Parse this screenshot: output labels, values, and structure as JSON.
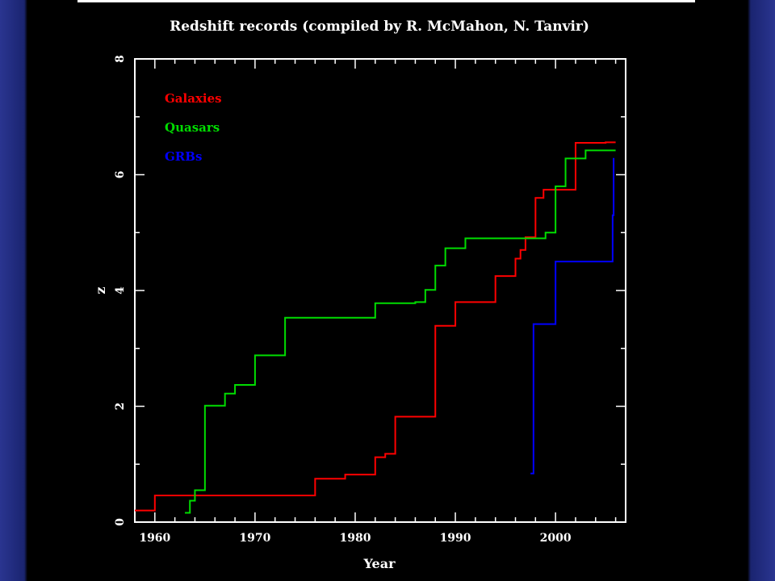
{
  "chart_data": {
    "type": "line",
    "title": "Redshift records (compiled by R. McMahon, N. Tanvir)",
    "xlabel": "Year",
    "ylabel": "z",
    "xlim": [
      1958,
      2007
    ],
    "ylim": [
      0,
      8
    ],
    "xticks": [
      1960,
      1970,
      1980,
      1990,
      2000
    ],
    "yticks": [
      0,
      2,
      4,
      6,
      8
    ],
    "legend_position": "top-left",
    "grid": false,
    "series": [
      {
        "name": "Galaxies",
        "color": "#ff0000",
        "step": true,
        "points": [
          [
            1958,
            0.2
          ],
          [
            1960,
            0.46
          ],
          [
            1976,
            0.75
          ],
          [
            1979,
            0.82
          ],
          [
            1982,
            1.12
          ],
          [
            1983,
            1.18
          ],
          [
            1984,
            1.82
          ],
          [
            1988,
            3.39
          ],
          [
            1990,
            3.8
          ],
          [
            1994,
            4.25
          ],
          [
            1996,
            4.55
          ],
          [
            1996.5,
            4.7
          ],
          [
            1997,
            4.92
          ],
          [
            1998,
            5.6
          ],
          [
            1998.8,
            5.74
          ],
          [
            2000,
            5.74
          ],
          [
            2002,
            6.55
          ],
          [
            2005,
            6.56
          ],
          [
            2006,
            6.56
          ]
        ]
      },
      {
        "name": "Quasars",
        "color": "#00dd00",
        "step": true,
        "points": [
          [
            1963,
            0.16
          ],
          [
            1963.5,
            0.37
          ],
          [
            1964,
            0.55
          ],
          [
            1965,
            2.01
          ],
          [
            1967,
            2.22
          ],
          [
            1968,
            2.37
          ],
          [
            1970,
            2.88
          ],
          [
            1973,
            3.53
          ],
          [
            1982,
            3.78
          ],
          [
            1986,
            3.8
          ],
          [
            1987,
            4.01
          ],
          [
            1988,
            4.43
          ],
          [
            1989,
            4.73
          ],
          [
            1991,
            4.9
          ],
          [
            1999,
            5.0
          ],
          [
            2000,
            5.8
          ],
          [
            2001,
            6.28
          ],
          [
            2003,
            6.42
          ],
          [
            2006,
            6.42
          ]
        ]
      },
      {
        "name": "GRBs",
        "color": "#0000ff",
        "step": true,
        "points": [
          [
            1997.5,
            0.84
          ],
          [
            1997.8,
            3.42
          ],
          [
            2000,
            4.5
          ],
          [
            2005.7,
            5.3
          ],
          [
            2005.8,
            6.29
          ]
        ]
      }
    ]
  }
}
